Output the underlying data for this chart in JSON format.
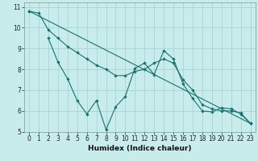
{
  "xlabel": "Humidex (Indice chaleur)",
  "background_color": "#c8ecec",
  "grid_color": "#aad4d4",
  "line_color": "#1a7070",
  "xlim": [
    -0.5,
    23.5
  ],
  "ylim": [
    5,
    11.2
  ],
  "yticks": [
    5,
    6,
    7,
    8,
    9,
    10,
    11
  ],
  "xticks": [
    0,
    1,
    2,
    3,
    4,
    5,
    6,
    7,
    8,
    9,
    10,
    11,
    12,
    13,
    14,
    15,
    16,
    17,
    18,
    19,
    20,
    21,
    22,
    23
  ],
  "series": [
    {
      "x": [
        0,
        23
      ],
      "y": [
        10.8,
        5.4
      ]
    },
    {
      "x": [
        0,
        1,
        2,
        3,
        4,
        5,
        6,
        7,
        8,
        9,
        10,
        11,
        12,
        13,
        14,
        15,
        16,
        17,
        18,
        19,
        20,
        21,
        22,
        23
      ],
      "y": [
        10.8,
        10.7,
        9.9,
        9.5,
        9.1,
        8.8,
        8.5,
        8.2,
        8.0,
        7.7,
        7.7,
        7.9,
        8.0,
        8.3,
        8.5,
        8.3,
        7.5,
        7.0,
        6.3,
        6.1,
        6.0,
        6.0,
        5.9,
        5.4
      ]
    },
    {
      "comment": "zigzag line: starts (2,9.5), drops to (3,8.35),(4,7.55),(5,6.5),(6,5.85),(7,6.5),(8,5.1),(9,6.2),(10,6.7),(11,8.05),(12,8.3),(13,7.75),(14,8.9),(15,8.5),(16,7.3),(17,6.6),(18,6.0),(19,5.95),(20,6.15),(21,6.1),(22,5.85),(23,5.4)",
      "x": [
        2,
        3,
        4,
        5,
        6,
        7,
        8,
        9,
        10,
        11,
        12,
        13,
        14,
        15,
        16,
        17,
        18,
        19,
        20,
        21,
        22,
        23
      ],
      "y": [
        9.5,
        8.35,
        7.55,
        6.5,
        5.85,
        6.5,
        5.1,
        6.2,
        6.7,
        8.05,
        8.3,
        7.75,
        8.9,
        8.5,
        7.3,
        6.6,
        6.0,
        5.95,
        6.15,
        6.1,
        5.85,
        5.4
      ]
    }
  ]
}
